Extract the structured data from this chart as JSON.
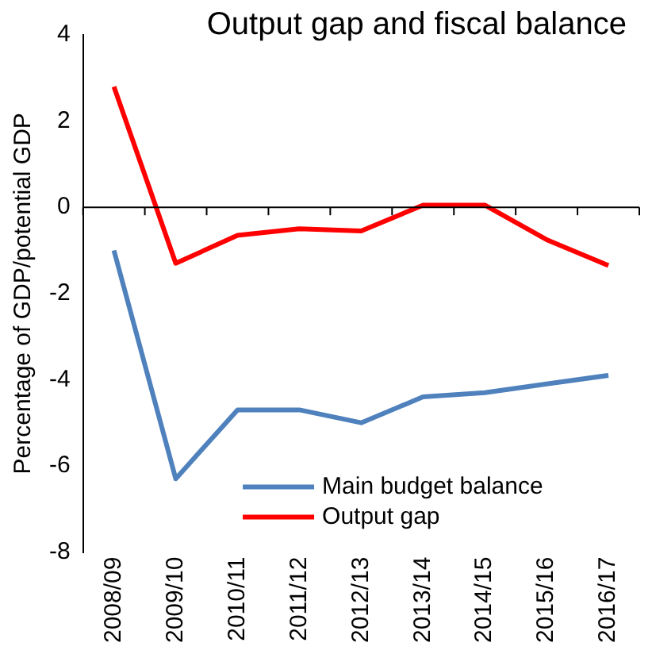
{
  "chart_data": {
    "type": "line",
    "title": "Output gap and fiscal balance",
    "ylabel": "Percentage of GDP/potential GDP",
    "categories": [
      "2008/09",
      "2009/10",
      "2010/11",
      "2011/12",
      "2012/13",
      "2013/14",
      "2014/15",
      "2015/16",
      "2016/17"
    ],
    "series": [
      {
        "name": "Main budget balance",
        "color": "#4f81bd",
        "values": [
          -1.0,
          -6.3,
          -4.7,
          -4.7,
          -5.0,
          -4.4,
          -4.3,
          -4.1,
          -3.9
        ]
      },
      {
        "name": "Output gap",
        "color": "#ff0000",
        "values": [
          2.8,
          -1.3,
          -0.65,
          -0.5,
          -0.55,
          0.05,
          0.05,
          -0.75,
          -1.35
        ]
      }
    ],
    "ylim": [
      -8,
      4
    ],
    "yticks": [
      -8,
      -6,
      -4,
      -2,
      0,
      2,
      4
    ],
    "grid": false,
    "legend": "bottom",
    "marker": "none",
    "line_style": "solid",
    "ref_lines": [
      {
        "axis": "y",
        "value": 0
      }
    ]
  }
}
